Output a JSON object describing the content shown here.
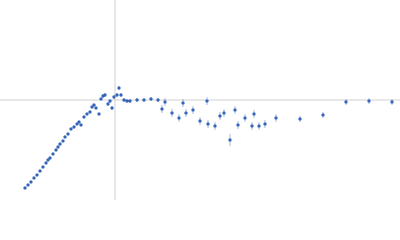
{
  "chart_data": {
    "type": "scatter",
    "xlim": [
      -115,
      285
    ],
    "ylim": [
      -100,
      100
    ],
    "zero_lines": true,
    "series": [
      {
        "color": "#3565b8",
        "x": [
          -90,
          -87,
          -84,
          -81,
          -78,
          -75,
          -72,
          -69,
          -67,
          -65,
          -62,
          -59,
          -57,
          -55,
          -52,
          -50,
          -47,
          -44,
          -41,
          -38,
          -36,
          -34,
          -31,
          -28,
          -25,
          -23,
          -21,
          -19,
          -16,
          -14,
          -12,
          -10,
          -7,
          -5,
          -3,
          -1,
          2,
          4,
          6,
          9,
          12,
          15,
          22,
          29,
          36,
          43,
          47,
          50,
          57,
          64,
          68,
          71,
          78,
          85,
          92,
          93,
          100,
          105,
          109,
          115,
          120,
          123,
          130,
          137,
          139,
          144,
          150,
          161,
          185,
          208,
          231,
          254,
          277
        ],
        "values": [
          -88,
          -85,
          -82,
          -78,
          -75,
          -71,
          -67,
          -63,
          -60,
          -58,
          -54,
          -50,
          -47,
          -44,
          -41,
          -37,
          -34,
          -29,
          -27,
          -24,
          -22,
          -25,
          -17,
          -14,
          -12,
          -7,
          -5,
          -8,
          -14,
          1,
          4,
          5,
          -4,
          -1,
          -8,
          3,
          5,
          12,
          5,
          0,
          -1,
          -1,
          0,
          0,
          1,
          0,
          -9,
          -2,
          -13,
          -18,
          -3,
          -13,
          -10,
          -21,
          -1,
          -24,
          -26,
          -16,
          -13,
          -40,
          -10,
          -25,
          -18,
          -26,
          -14,
          -26,
          -24,
          -18,
          -19,
          -15,
          -2,
          -1,
          -2
        ],
        "errors": [
          1,
          1,
          1,
          1,
          1,
          1,
          1,
          1,
          1,
          1,
          1,
          1,
          1,
          1,
          1,
          1,
          1,
          1,
          1,
          1,
          1,
          1,
          1,
          1,
          1,
          1,
          1,
          1,
          1,
          1,
          2,
          2,
          2,
          2,
          2,
          2,
          2,
          2,
          2,
          2,
          2,
          2,
          2,
          2,
          2,
          2,
          4,
          4,
          4,
          4,
          4,
          4,
          4,
          4,
          4,
          4,
          4,
          4,
          4,
          6,
          4,
          4,
          4,
          4,
          4,
          4,
          4,
          4,
          3,
          3,
          3,
          3,
          3
        ]
      }
    ]
  }
}
